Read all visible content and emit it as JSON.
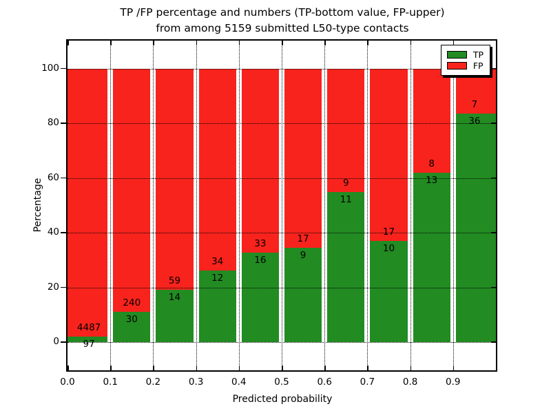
{
  "title": {
    "line1": "TP /FP percentage and numbers (TP-bottom value, FP-upper)",
    "line2": "from among 5159 submitted L50-type contacts"
  },
  "axes": {
    "xlabel": "Predicted probability",
    "ylabel": "Percentage",
    "x_tick_labels": [
      "0.0",
      "0.1",
      "0.2",
      "0.3",
      "0.4",
      "0.5",
      "0.6",
      "0.7",
      "0.8",
      "0.9"
    ],
    "x_tick_values": [
      0.0,
      0.1,
      0.2,
      0.3,
      0.4,
      0.5,
      0.6,
      0.7,
      0.8,
      0.9
    ],
    "y_tick_labels": [
      "0",
      "20",
      "40",
      "60",
      "80",
      "100"
    ],
    "y_tick_values": [
      0,
      20,
      40,
      60,
      80,
      100
    ],
    "xlim": [
      0.0,
      1.0
    ],
    "ylim": [
      -10.3,
      110.3
    ]
  },
  "legend": {
    "items": [
      {
        "label": "TP",
        "color": "#228b22"
      },
      {
        "label": "FP",
        "color": "#f8231d"
      }
    ]
  },
  "colors": {
    "tp_green": "#228b22",
    "fp_red": "#f8231d",
    "grid": "#000000",
    "background": "#ffffff"
  },
  "chart_data": {
    "type": "bar",
    "stacked": true,
    "normalized": "each bin stacks to 100%",
    "title": "TP /FP percentage and numbers (TP-bottom value, FP-upper) from among 5159 submitted L50-type contacts",
    "xlabel": "Predicted probability",
    "ylabel": "Percentage",
    "bin_starts": [
      0.0,
      0.1,
      0.2,
      0.3,
      0.4,
      0.5,
      0.6,
      0.7,
      0.8,
      0.9
    ],
    "bin_width": 0.1,
    "series": [
      {
        "name": "TP",
        "color": "#228b22",
        "counts": [
          97,
          30,
          14,
          12,
          16,
          9,
          11,
          10,
          13,
          36
        ]
      },
      {
        "name": "FP",
        "color": "#f8231d",
        "counts": [
          4487,
          240,
          59,
          34,
          33,
          17,
          9,
          17,
          8,
          7
        ]
      }
    ],
    "tp_percent": [
      2.12,
      11.11,
      19.18,
      26.09,
      32.65,
      34.62,
      55.0,
      37.04,
      61.9,
      83.72
    ],
    "total_contacts": 5159,
    "ylim": [
      -10.3,
      110.3
    ],
    "grid": "dotted, drawn over bars",
    "legend_position": "upper right"
  }
}
